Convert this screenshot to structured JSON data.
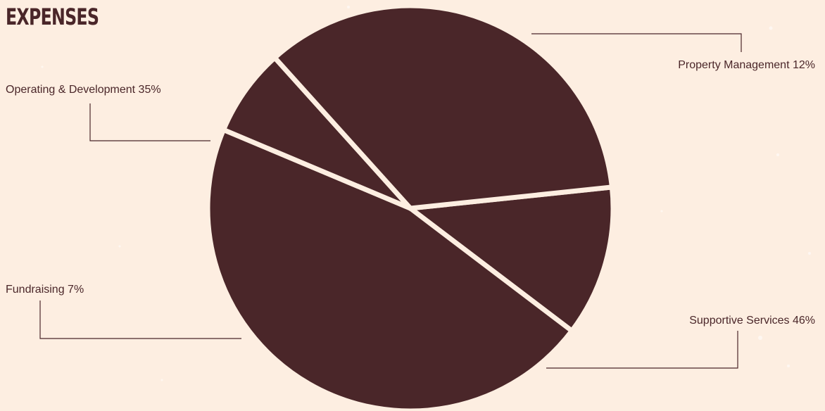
{
  "chart_data": {
    "type": "pie",
    "title": "EXPENSES",
    "slices": [
      {
        "label": "Property Management 12%",
        "name": "Property Management",
        "value": 12
      },
      {
        "label": "Supportive Services 46%",
        "name": "Supportive Services",
        "value": 46
      },
      {
        "label": "Fundraising 7%",
        "name": "Fundraising",
        "value": 7
      },
      {
        "label": "Operating & Development 35%",
        "name": "Operating & Development",
        "value": 35
      }
    ],
    "colors": {
      "slice": "#4a2629",
      "separator": "#fdeee1",
      "background": "#fdeee1",
      "text": "#4a2629"
    }
  }
}
